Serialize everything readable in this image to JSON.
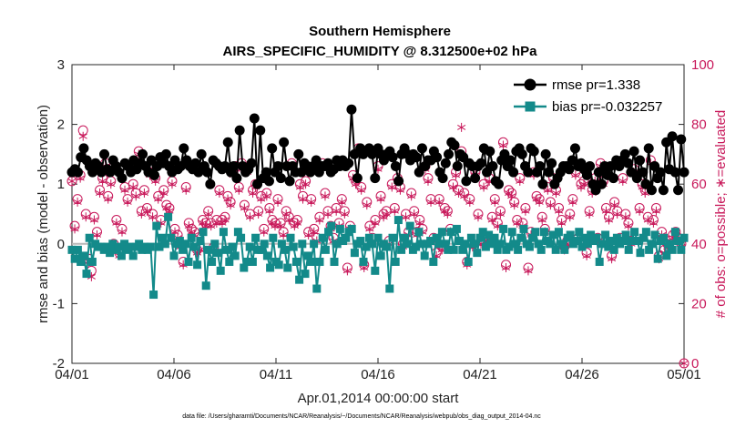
{
  "chart_data": {
    "type": "line",
    "title": "Southern Hemisphere",
    "subtitle": "AIRS_SPECIFIC_HUMIDITY @ 8.312500e+02 hPa",
    "xlabel": "Apr.01,2014 00:00:00 start",
    "ylabel_left": "rmse and bias (model - observation)",
    "ylabel_right": "# of obs: o=possible; ∗=evaluated",
    "footer": "data file: /Users/gharamti/Documents/NCAR/Reanalysis/~/Documents/NCAR/Reanalysis/webpub/obs_diag_output_2014-04.nc",
    "xlim": [
      0,
      30
    ],
    "x_ticks": [
      0,
      5,
      10,
      15,
      20,
      25,
      30
    ],
    "x_tick_labels": [
      "04/01",
      "04/06",
      "04/11",
      "04/16",
      "04/21",
      "04/26",
      "05/01"
    ],
    "ylim_left": [
      -2,
      3
    ],
    "y_ticks_left": [
      "-2",
      "-1",
      "0",
      "1",
      "2",
      "3"
    ],
    "ylim_right": [
      0,
      100
    ],
    "y_ticks_right": [
      "0",
      "20",
      "40",
      "60",
      "80",
      "100"
    ],
    "zero_line": 0,
    "colors": {
      "rmse": "#000000",
      "bias": "#138a8a",
      "obs": "#c8185a",
      "zero": "#b8b8b8"
    },
    "legend": {
      "position": "top-right",
      "entries": [
        {
          "name": "rmse pr=1.338",
          "marker": "circle",
          "color": "#000000"
        },
        {
          "name": "bias pr=-0.032257",
          "marker": "square",
          "color": "#138a8a"
        }
      ]
    },
    "series": [
      {
        "name": "rmse",
        "axis": "left",
        "values": [
          1.2,
          1.25,
          1.2,
          1.45,
          1.6,
          1.4,
          1.3,
          1.2,
          1.35,
          1.3,
          1.2,
          1.5,
          1.25,
          1.2,
          1.4,
          1.3,
          1.2,
          1.1,
          1.35,
          1.3,
          1.2,
          1.4,
          1.25,
          1.35,
          1.5,
          1.3,
          1.2,
          1.4,
          1.15,
          1.3,
          1.45,
          1.35,
          1.5,
          1.3,
          1.2,
          1.4,
          1.25,
          1.3,
          1.6,
          1.4,
          1.3,
          1.25,
          1.35,
          1.2,
          1.5,
          1.3,
          1.2,
          1.0,
          1.4,
          1.35,
          1.3,
          1.25,
          1.3,
          1.7,
          1.2,
          1.3,
          1.1,
          1.9,
          1.3,
          1.2,
          1.25,
          1.35,
          2.1,
          1.0,
          1.9,
          1.1,
          1.2,
          1.05,
          1.6,
          1.2,
          1.3,
          1.1,
          1.7,
          1.3,
          1.05,
          1.3,
          1.2,
          1.5,
          1.2,
          1.35,
          1.3,
          1.2,
          1.3,
          1.4,
          1.2,
          1.3,
          1.3,
          1.35,
          1.2,
          1.25,
          1.4,
          1.3,
          1.4,
          1.3,
          1.35,
          2.25,
          1.5,
          1.1,
          1.6,
          1.5,
          1.55,
          1.6,
          1.5,
          1.1,
          1.6,
          1.5,
          1.4,
          1.5,
          1.55,
          1.45,
          1.3,
          1.05,
          1.5,
          1.6,
          1.5,
          1.4,
          1.5,
          1.45,
          1.2,
          1.6,
          1.3,
          1.4,
          1.4,
          1.55,
          1.45,
          1.2,
          1.1,
          1.35,
          1.5,
          1.7,
          1.65,
          1.3,
          1.5,
          1.45,
          1.05,
          1.35,
          1.3,
          1.1,
          1.3,
          1.35,
          1.6,
          1.2,
          1.55,
          1.3,
          1.05,
          1.0,
          1.4,
          1.5,
          1.3,
          1.4,
          1.2,
          1.55,
          1.6,
          1.5,
          1.3,
          1.2,
          1.6,
          1.55,
          1.2,
          1.3,
          1.0,
          1.5,
          1.2,
          1.35,
          1.0,
          1.1,
          1.2,
          1.3,
          1.3,
          1.25,
          1.4,
          1.6,
          1.3,
          1.35,
          1.25,
          1.15,
          1.3,
          1.0,
          0.9,
          1.2,
          1.0,
          1.3,
          1.15,
          1.3,
          1.1,
          1.4,
          1.3,
          1.4,
          1.5,
          1.35,
          1.2,
          1.55,
          1.1,
          1.4,
          1.2,
          1.0,
          1.6,
          0.9,
          1.3,
          1.1,
          1.2,
          0.9,
          1.7,
          1.25,
          1.8,
          1.2,
          0.9,
          1.75,
          1.2
        ]
      },
      {
        "name": "bias",
        "axis": "left",
        "values": [
          -0.1,
          -0.25,
          -0.1,
          -0.3,
          -0.2,
          -0.5,
          0.1,
          -0.3,
          0.0,
          -0.05,
          -0.05,
          -0.1,
          -0.05,
          -0.15,
          0.0,
          -0.1,
          -0.05,
          -0.2,
          0.0,
          -0.1,
          -0.05,
          -0.2,
          -0.05,
          0.0,
          -0.1,
          -0.05,
          -0.1,
          -0.05,
          -0.85,
          0.3,
          -0.05,
          0.1,
          0.0,
          0.45,
          0.1,
          -0.2,
          0.0,
          0.05,
          -0.1,
          0.0,
          -0.3,
          0.1,
          -0.05,
          -0.35,
          0.05,
          0.2,
          -0.7,
          -0.1,
          -0.3,
          0.0,
          -0.15,
          -0.45,
          0.2,
          -0.1,
          -0.3,
          -0.05,
          -0.2,
          0.2,
          0.1,
          -0.4,
          -0.3,
          -0.05,
          -0.3,
          0.1,
          -0.1,
          -0.1,
          0.0,
          -0.2,
          -0.4,
          0.1,
          -0.3,
          -0.35,
          0.0,
          -0.1,
          -0.4,
          0.1,
          -0.05,
          -0.3,
          -0.6,
          0.0,
          -0.5,
          -0.2,
          -0.3,
          0.0,
          -0.75,
          -0.3,
          0.1,
          -0.1,
          0.2,
          0.3,
          -0.3,
          0.0,
          0.25,
          0.05,
          0.1,
          0.2,
          0.25,
          -0.15,
          0.0,
          0.05,
          -0.3,
          -0.05,
          0.1,
          0.0,
          -0.45,
          0.1,
          -0.2,
          0.0,
          -0.05,
          -0.75,
          0.1,
          -0.3,
          0.4,
          -0.1,
          0.1,
          0.0,
          0.3,
          -0.1,
          -0.05,
          0.2,
          0.0,
          -0.2,
          0.0,
          0.05,
          -0.3,
          0.1,
          0.0,
          0.2,
          0.0,
          -0.1,
          0.2,
          -0.1,
          0.25,
          0.05,
          -0.1,
          0.0,
          -0.3,
          0.1,
          0.0,
          -0.15,
          0.1,
          0.2,
          -0.05,
          0.15,
          0.0,
          0.1,
          -0.1,
          0.0,
          0.25,
          -0.1,
          -0.05,
          0.2,
          0.0,
          -0.1,
          0.1,
          0.25,
          0.0,
          -0.05,
          0.1,
          0.2,
          0.0,
          -0.1,
          0.2,
          0.05,
          0.0,
          0.15,
          -0.1,
          0.2,
          0.0,
          -0.1,
          0.1,
          0.15,
          0.0,
          0.05,
          0.2,
          -0.05,
          0.1,
          0.0,
          0.15,
          0.05,
          0.1,
          -0.3,
          0.0,
          0.15,
          -0.05,
          0.05,
          -0.1,
          0.1,
          0.0,
          0.05,
          0.15,
          -0.1,
          0.05,
          0.2,
          0.05,
          -0.15,
          0.1,
          0.2,
          -0.1,
          0.0,
          0.15,
          -0.25,
          0.05,
          0.1,
          -0.2,
          0.0,
          -0.1,
          0.2,
          0.05,
          -0.1,
          0.1
        ]
      },
      {
        "name": "obs_possible",
        "axis": "right",
        "marker": "open-circle",
        "values": [
          61,
          46,
          55,
          63,
          78,
          50,
          35,
          31,
          49,
          44,
          58,
          62,
          67,
          56,
          61,
          40,
          48,
          37,
          45,
          59,
          55,
          66,
          60,
          57,
          71,
          51,
          58,
          52,
          64,
          50,
          62,
          56,
          48,
          58,
          53,
          52,
          61,
          45,
          43,
          40,
          34,
          59,
          47,
          45,
          44,
          38,
          39,
          48,
          47,
          51,
          47,
          39,
          48,
          58,
          48,
          49,
          56,
          54,
          64,
          66,
          59,
          67,
          53,
          65,
          50,
          58,
          60,
          51,
          56,
          45,
          57,
          52,
          48,
          47,
          55,
          47,
          44,
          51,
          49,
          67,
          47,
          48,
          60,
          56,
          61,
          44,
          55,
          45,
          42,
          49,
          67,
          57,
          51,
          46,
          42,
          52,
          47,
          55,
          51,
          32,
          46,
          63,
          61,
          72,
          59,
          33,
          54,
          46,
          42,
          48,
          66,
          56,
          50,
          51,
          41,
          60,
          52,
          62,
          59,
          40,
          50,
          44,
          57,
          51,
          44,
          48,
          45,
          66,
          62,
          55,
          42,
          37,
          55,
          39,
          52,
          51,
          45,
          60,
          64,
          58,
          71,
          57,
          34,
          55,
          40,
          64,
          50,
          41,
          60,
          42,
          62,
          49,
          55,
          47,
          51,
          74,
          33,
          58,
          57,
          54,
          48,
          62,
          47,
          52,
          32,
          44,
          64,
          56,
          55,
          49,
          45,
          59,
          54,
          62,
          58,
          52,
          48,
          39,
          41,
          50,
          55,
          64,
          42,
          60,
          61,
          37,
          51,
          58,
          62,
          42,
          67,
          61,
          52,
          49,
          36,
          54,
          51,
          42,
          62,
          50,
          47,
          41,
          65,
          63,
          52,
          60,
          58,
          49,
          68,
          48,
          52,
          36,
          44,
          38,
          40,
          41,
          43,
          44,
          42,
          40,
          0
        ]
      },
      {
        "name": "obs_evaluated",
        "axis": "right",
        "marker": "star",
        "values": [
          61,
          45,
          54,
          62,
          76,
          49,
          34,
          29,
          48,
          43,
          57,
          61,
          66,
          55,
          60,
          39,
          47,
          36,
          44,
          58,
          54,
          65,
          59,
          56,
          70,
          50,
          57,
          51,
          63,
          49,
          61,
          55,
          47,
          57,
          52,
          51,
          60,
          44,
          42,
          39,
          33,
          58,
          46,
          44,
          43,
          37,
          38,
          47,
          46,
          50,
          46,
          38,
          47,
          57,
          47,
          48,
          55,
          53,
          63,
          65,
          58,
          66,
          52,
          64,
          49,
          57,
          59,
          50,
          55,
          44,
          56,
          51,
          47,
          46,
          54,
          46,
          43,
          50,
          48,
          66,
          46,
          47,
          59,
          55,
          60,
          43,
          54,
          44,
          41,
          48,
          66,
          56,
          50,
          45,
          41,
          51,
          46,
          54,
          50,
          31,
          45,
          62,
          60,
          71,
          58,
          32,
          53,
          45,
          41,
          47,
          65,
          55,
          49,
          50,
          40,
          59,
          51,
          61,
          58,
          39,
          49,
          43,
          56,
          50,
          43,
          47,
          44,
          65,
          61,
          54,
          41,
          36,
          54,
          38,
          51,
          50,
          44,
          59,
          63,
          57,
          79,
          56,
          33,
          54,
          39,
          63,
          49,
          40,
          59,
          41,
          61,
          48,
          54,
          46,
          50,
          73,
          32,
          57,
          56,
          53,
          47,
          61,
          46,
          51,
          31,
          43,
          63,
          55,
          54,
          48,
          44,
          58,
          53,
          61,
          57,
          51,
          47,
          38,
          40,
          49,
          54,
          63,
          41,
          59,
          60,
          36,
          50,
          57,
          61,
          41,
          66,
          60,
          51,
          48,
          35,
          53,
          50,
          41,
          61,
          49,
          46,
          40,
          64,
          62,
          51,
          59,
          57,
          48,
          67,
          47,
          51,
          35,
          43,
          37,
          39,
          40,
          42,
          43,
          41,
          39,
          0
        ]
      }
    ]
  }
}
